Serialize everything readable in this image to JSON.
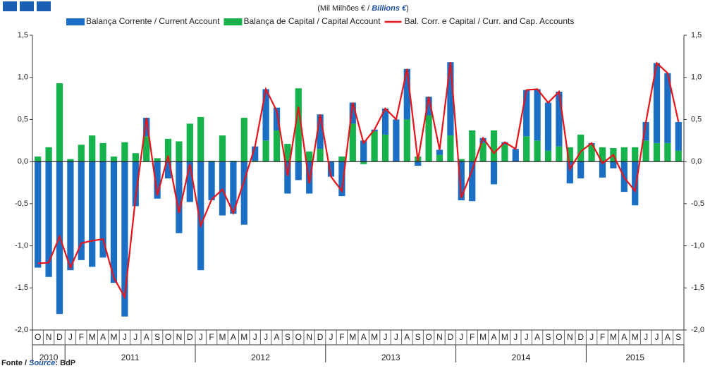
{
  "chart_data": {
    "type": "bar",
    "unit_label": [
      "(Mil Milhões € / ",
      "Billions €",
      ")"
    ],
    "source": [
      "Fonte / ",
      "Source",
      ": BdP"
    ],
    "categories": [
      "O",
      "N",
      "D",
      "J",
      "F",
      "M",
      "A",
      "M",
      "J",
      "J",
      "A",
      "S",
      "O",
      "N",
      "D",
      "J",
      "F",
      "M",
      "A",
      "M",
      "J",
      "J",
      "A",
      "S",
      "O",
      "N",
      "D",
      "J",
      "F",
      "M",
      "A",
      "M",
      "J",
      "J",
      "A",
      "S",
      "O",
      "N",
      "D",
      "J",
      "F",
      "M",
      "A",
      "M",
      "J",
      "J",
      "A",
      "S",
      "O",
      "N",
      "D",
      "J",
      "F",
      "M",
      "A",
      "M",
      "J",
      "J",
      "A",
      "S"
    ],
    "years": [
      "2010",
      "2011",
      "2012",
      "2013",
      "2014",
      "2015"
    ],
    "series": [
      {
        "name": "Balança de Capital / Capital Account",
        "color": "#16b24b",
        "values": [
          0.06,
          0.17,
          0.93,
          0.03,
          0.2,
          0.31,
          0.22,
          0.06,
          0.23,
          0.1,
          0.3,
          0.04,
          0.27,
          0.24,
          0.45,
          0.53,
          0.01,
          0.31,
          0.01,
          0.52,
          0.01,
          0.25,
          0.37,
          0.21,
          0.87,
          0.12,
          0.15,
          0.0,
          0.06,
          0.45,
          -0.03,
          0.36,
          0.32,
          0.0,
          0.5,
          0.06,
          0.55,
          0.08,
          0.31,
          0.03,
          0.37,
          0.22,
          0.37,
          0.2,
          0.0,
          0.3,
          0.25,
          0.13,
          0.18,
          0.17,
          0.32,
          0.2,
          0.17,
          0.16,
          0.17,
          0.17,
          0.25,
          0.22,
          0.22,
          0.13
        ]
      },
      {
        "name": "Balança Corrente / Current Account",
        "color": "#1a6fc4",
        "values": [
          -1.26,
          -1.37,
          -1.81,
          -1.29,
          -1.17,
          -1.25,
          -1.14,
          -1.44,
          -1.84,
          -0.53,
          0.22,
          -0.44,
          -0.2,
          -0.85,
          -0.48,
          -1.29,
          -0.46,
          -0.64,
          -0.62,
          -0.75,
          0.17,
          0.61,
          0.27,
          -0.38,
          -0.22,
          -0.38,
          0.41,
          -0.18,
          -0.41,
          0.25,
          0.25,
          0.02,
          0.31,
          0.5,
          0.6,
          -0.05,
          0.22,
          0.06,
          0.87,
          -0.46,
          -0.47,
          0.06,
          -0.27,
          0.03,
          0.15,
          0.55,
          0.61,
          0.57,
          0.65,
          -0.26,
          -0.2,
          0.02,
          -0.19,
          -0.08,
          -0.36,
          -0.52,
          0.22,
          0.95,
          0.83,
          0.34
        ]
      },
      {
        "name": "Bal. Corr. e Capital / Curr. and Cap. Accounts",
        "color": "#e8141a",
        "line": true,
        "values": [
          -1.21,
          -1.2,
          -0.89,
          -1.26,
          -0.97,
          -0.94,
          -0.92,
          -1.38,
          -1.61,
          -0.43,
          0.52,
          -0.4,
          0.07,
          -0.61,
          -0.03,
          -0.76,
          -0.45,
          -0.33,
          -0.61,
          -0.23,
          0.18,
          0.86,
          0.6,
          -0.17,
          0.65,
          -0.26,
          0.56,
          -0.18,
          -0.35,
          0.7,
          0.22,
          0.38,
          0.63,
          0.5,
          1.1,
          0.01,
          0.77,
          0.14,
          1.18,
          -0.43,
          -0.1,
          0.28,
          0.1,
          0.23,
          0.15,
          0.85,
          0.86,
          0.7,
          0.83,
          -0.09,
          0.12,
          0.22,
          -0.02,
          0.08,
          -0.19,
          -0.35,
          0.47,
          1.17,
          1.05,
          0.47
        ]
      }
    ],
    "ylim": [
      -2.0,
      1.5
    ],
    "yticks": [
      {
        "value": -2.0,
        "label": "-2,0"
      },
      {
        "value": -1.5,
        "label": "-1,5"
      },
      {
        "value": -1.0,
        "label": "-1,0"
      },
      {
        "value": -0.5,
        "label": "-0,5"
      },
      {
        "value": 0,
        "label": "0,0"
      },
      {
        "value": 0.5,
        "label": "0,5"
      },
      {
        "value": 1.0,
        "label": "1,0"
      },
      {
        "value": 1.5,
        "label": "1,5"
      }
    ]
  }
}
